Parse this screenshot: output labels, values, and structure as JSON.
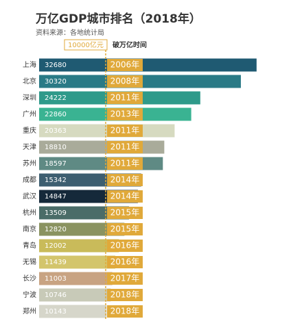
{
  "chart_data": {
    "type": "bar",
    "orientation": "horizontal",
    "title": "万亿GDP城市排名（2018年）",
    "subtitle": "资料来源：各地统计局",
    "categories": [
      "上海",
      "北京",
      "深圳",
      "广州",
      "重庆",
      "天津",
      "苏州",
      "成都",
      "武汉",
      "杭州",
      "南京",
      "青岛",
      "无锡",
      "长沙",
      "宁波",
      "郑州"
    ],
    "values": [
      32680,
      30320,
      24222,
      22860,
      20363,
      18810,
      18597,
      15342,
      14847,
      13509,
      12820,
      12002,
      11439,
      11003,
      10746,
      10143
    ],
    "colors": [
      "#1f5a72",
      "#2a7a86",
      "#2f9a8a",
      "#3ab392",
      "#d6dac0",
      "#a9ab9a",
      "#5f8a84",
      "#3d5e70",
      "#15293a",
      "#4a6c68",
      "#8a9360",
      "#c9bb5a",
      "#d3c56c",
      "#c8a382",
      "#c8cab8",
      "#d6d6ca"
    ],
    "xlim": [
      0,
      36000
    ],
    "reference_line": {
      "value": 10000,
      "label": "10000亿元"
    },
    "break_year_header": "破万亿时间",
    "break_year_labels": [
      "2006年",
      "2008年",
      "2011年",
      "2013年",
      "2011年",
      "2011年",
      "2011年",
      "2014年",
      "2014年",
      "2015年",
      "2015年",
      "2016年",
      "2016年",
      "2017年",
      "2018年",
      "2018年"
    ],
    "label_color": "#e0a93a"
  }
}
